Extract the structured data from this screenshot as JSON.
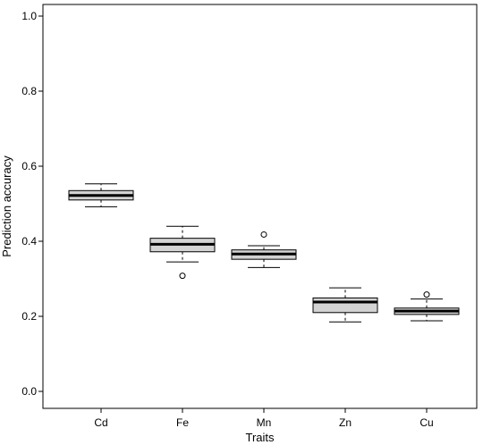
{
  "chart_data": {
    "type": "box",
    "title": "",
    "xlabel": "Traits",
    "ylabel": "Prediction accuracy",
    "ylim": [
      0,
      1
    ],
    "yticks": [
      "0.0",
      "0.2",
      "0.4",
      "0.6",
      "0.8",
      "1.0"
    ],
    "categories": [
      "Cd",
      "Fe",
      "Mn",
      "Zn",
      "Cu"
    ],
    "boxes": [
      {
        "whisker_low": 0.492,
        "q1": 0.51,
        "median": 0.522,
        "q3": 0.535,
        "whisker_high": 0.553,
        "outliers": []
      },
      {
        "whisker_low": 0.345,
        "q1": 0.372,
        "median": 0.392,
        "q3": 0.408,
        "whisker_high": 0.44,
        "outliers": [
          0.308
        ]
      },
      {
        "whisker_low": 0.33,
        "q1": 0.352,
        "median": 0.366,
        "q3": 0.377,
        "whisker_high": 0.388,
        "outliers": [
          0.418
        ]
      },
      {
        "whisker_low": 0.185,
        "q1": 0.21,
        "median": 0.238,
        "q3": 0.249,
        "whisker_high": 0.276,
        "outliers": []
      },
      {
        "whisker_low": 0.188,
        "q1": 0.205,
        "median": 0.214,
        "q3": 0.222,
        "whisker_high": 0.246,
        "outliers": [
          0.258
        ]
      }
    ],
    "box_fill": "#d3d3d3",
    "grid": false
  }
}
